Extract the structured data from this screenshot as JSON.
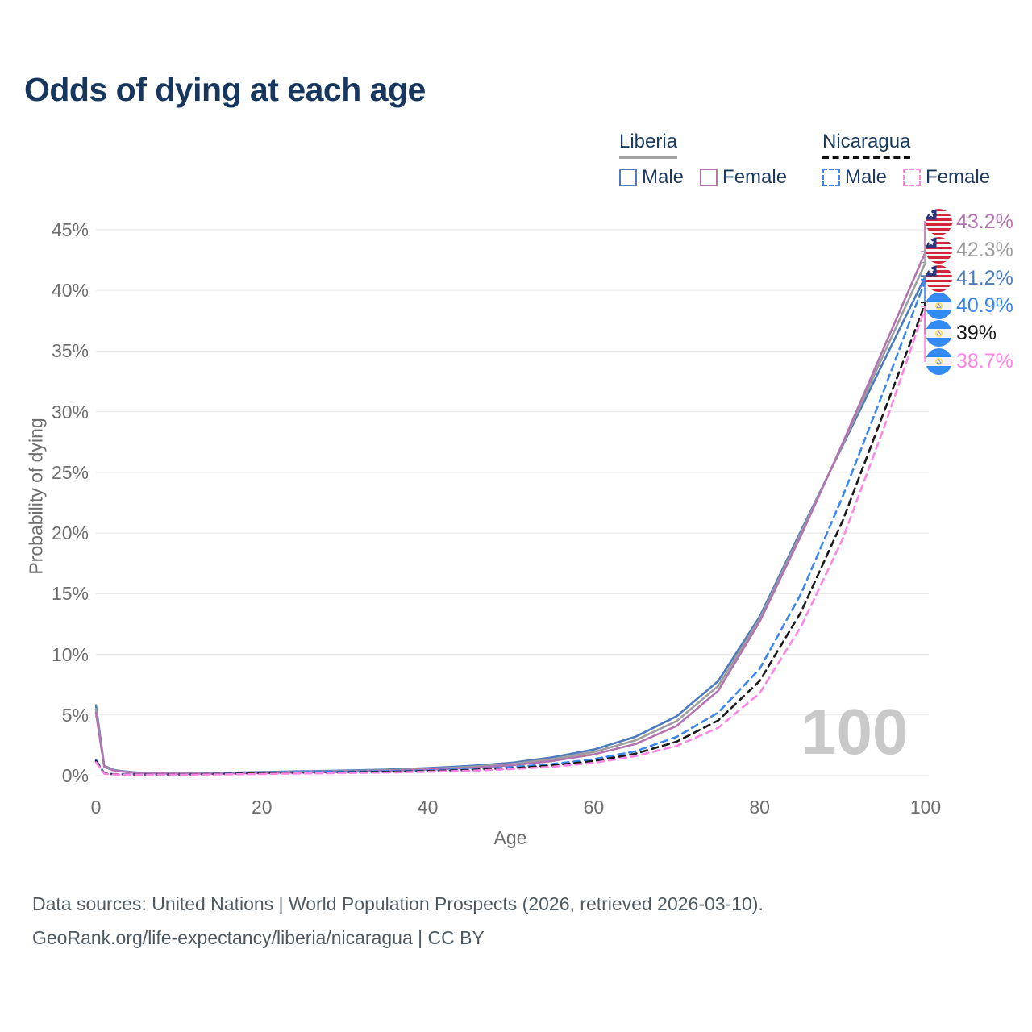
{
  "title": "Odds of dying at each age",
  "legend": {
    "groups": [
      {
        "label": "Liberia",
        "line_color": "#a3a3a3",
        "line_style": "solid",
        "items": [
          {
            "label": "Male",
            "color": "#4d7cbe",
            "style": "solid"
          },
          {
            "label": "Female",
            "color": "#b274b0",
            "style": "solid"
          }
        ]
      },
      {
        "label": "Nicaragua",
        "line_color": "#111111",
        "line_style": "dashed",
        "items": [
          {
            "label": "Male",
            "color": "#3c86f0",
            "style": "dashed"
          },
          {
            "label": "Female",
            "color": "#ff85e4",
            "style": "dashed"
          }
        ]
      }
    ]
  },
  "watermark": "100",
  "footer": {
    "line1": "Data sources: United Nations | World Population Prospects (2026, retrieved 2026-03-10).",
    "line2": "GeoRank.org/life-expectancy/liberia/nicaragua | CC BY"
  },
  "end_labels": [
    {
      "value": "43.2%",
      "flag": "liberia",
      "color": "#b274b0",
      "series_index": 2
    },
    {
      "value": "42.3%",
      "flag": "liberia",
      "color": "#9e9e9e",
      "series_index": 1
    },
    {
      "value": "41.2%",
      "flag": "liberia",
      "color": "#4d7cbe",
      "series_index": 0
    },
    {
      "value": "40.9%",
      "flag": "nicaragua",
      "color": "#3c86f0",
      "series_index": 3
    },
    {
      "value": "39%",
      "flag": "nicaragua",
      "color": "#1a1a1a",
      "series_index": 4
    },
    {
      "value": "38.7%",
      "flag": "nicaragua",
      "color": "#ff85e4",
      "series_index": 5
    }
  ],
  "chart_data": {
    "type": "line",
    "title": "Odds of dying at each age",
    "xlabel": "Age",
    "ylabel": "Probability of dying",
    "xlim": [
      0,
      100
    ],
    "ylim": [
      0,
      45
    ],
    "grid": "horizontal-only",
    "x_tick_values": [
      0,
      20,
      40,
      60,
      80,
      100
    ],
    "x_tick_labels": [
      "0",
      "20",
      "40",
      "60",
      "80",
      "100"
    ],
    "y_tick_values": [
      0,
      5,
      10,
      15,
      20,
      25,
      30,
      35,
      40,
      45
    ],
    "y_tick_labels": [
      "0%",
      "5%",
      "10%",
      "15%",
      "20%",
      "25%",
      "30%",
      "35%",
      "40%",
      "45%"
    ],
    "ages": [
      0,
      1,
      2,
      3,
      5,
      10,
      15,
      20,
      25,
      30,
      35,
      40,
      45,
      50,
      55,
      60,
      65,
      70,
      75,
      80,
      85,
      90,
      95,
      100
    ],
    "series": [
      {
        "name": "Liberia Male",
        "country": "Liberia",
        "sex": "Male",
        "color": "#4d7cbe",
        "dash": false,
        "end_value_pct": 41.2,
        "values": [
          5.8,
          0.8,
          0.5,
          0.38,
          0.25,
          0.18,
          0.22,
          0.3,
          0.36,
          0.42,
          0.5,
          0.62,
          0.8,
          1.05,
          1.5,
          2.15,
          3.2,
          4.9,
          7.8,
          13.1,
          20.2,
          27.2,
          34.2,
          41.2
        ]
      },
      {
        "name": "Liberia Both sexes",
        "country": "Liberia",
        "sex": "Both",
        "color": "#9e9e9e",
        "dash": false,
        "end_value_pct": 42.3,
        "values": [
          5.5,
          0.76,
          0.48,
          0.36,
          0.24,
          0.17,
          0.2,
          0.26,
          0.31,
          0.37,
          0.44,
          0.55,
          0.71,
          0.95,
          1.35,
          1.95,
          2.9,
          4.5,
          7.4,
          12.9,
          20.0,
          27.3,
          34.8,
          42.3
        ]
      },
      {
        "name": "Liberia Female",
        "country": "Liberia",
        "sex": "Female",
        "color": "#b274b0",
        "dash": false,
        "end_value_pct": 43.2,
        "values": [
          5.2,
          0.72,
          0.45,
          0.34,
          0.22,
          0.15,
          0.17,
          0.22,
          0.27,
          0.32,
          0.39,
          0.49,
          0.63,
          0.85,
          1.2,
          1.75,
          2.6,
          4.1,
          7.0,
          12.7,
          19.8,
          27.4,
          35.3,
          43.2
        ]
      },
      {
        "name": "Nicaragua Male",
        "country": "Nicaragua",
        "sex": "Male",
        "color": "#3c86f0",
        "dash": true,
        "end_value_pct": 40.9,
        "values": [
          1.3,
          0.2,
          0.13,
          0.11,
          0.1,
          0.1,
          0.16,
          0.26,
          0.3,
          0.33,
          0.37,
          0.43,
          0.53,
          0.7,
          0.95,
          1.35,
          2.0,
          3.2,
          5.2,
          8.8,
          15.0,
          23.0,
          31.8,
          40.9
        ]
      },
      {
        "name": "Nicaragua Both sexes",
        "country": "Nicaragua",
        "sex": "Both",
        "color": "#1a1a1a",
        "dash": true,
        "end_value_pct": 39.0,
        "values": [
          1.2,
          0.18,
          0.12,
          0.1,
          0.09,
          0.09,
          0.13,
          0.2,
          0.24,
          0.27,
          0.31,
          0.37,
          0.46,
          0.6,
          0.84,
          1.2,
          1.8,
          2.8,
          4.55,
          7.8,
          13.5,
          21.0,
          30.0,
          39.0
        ]
      },
      {
        "name": "Nicaragua Female",
        "country": "Nicaragua",
        "sex": "Female",
        "color": "#ff85e4",
        "dash": true,
        "end_value_pct": 38.7,
        "values": [
          1.1,
          0.16,
          0.1,
          0.09,
          0.08,
          0.08,
          0.1,
          0.14,
          0.18,
          0.21,
          0.26,
          0.32,
          0.4,
          0.53,
          0.73,
          1.05,
          1.6,
          2.45,
          3.95,
          6.8,
          12.3,
          19.5,
          28.7,
          38.7
        ]
      }
    ]
  }
}
